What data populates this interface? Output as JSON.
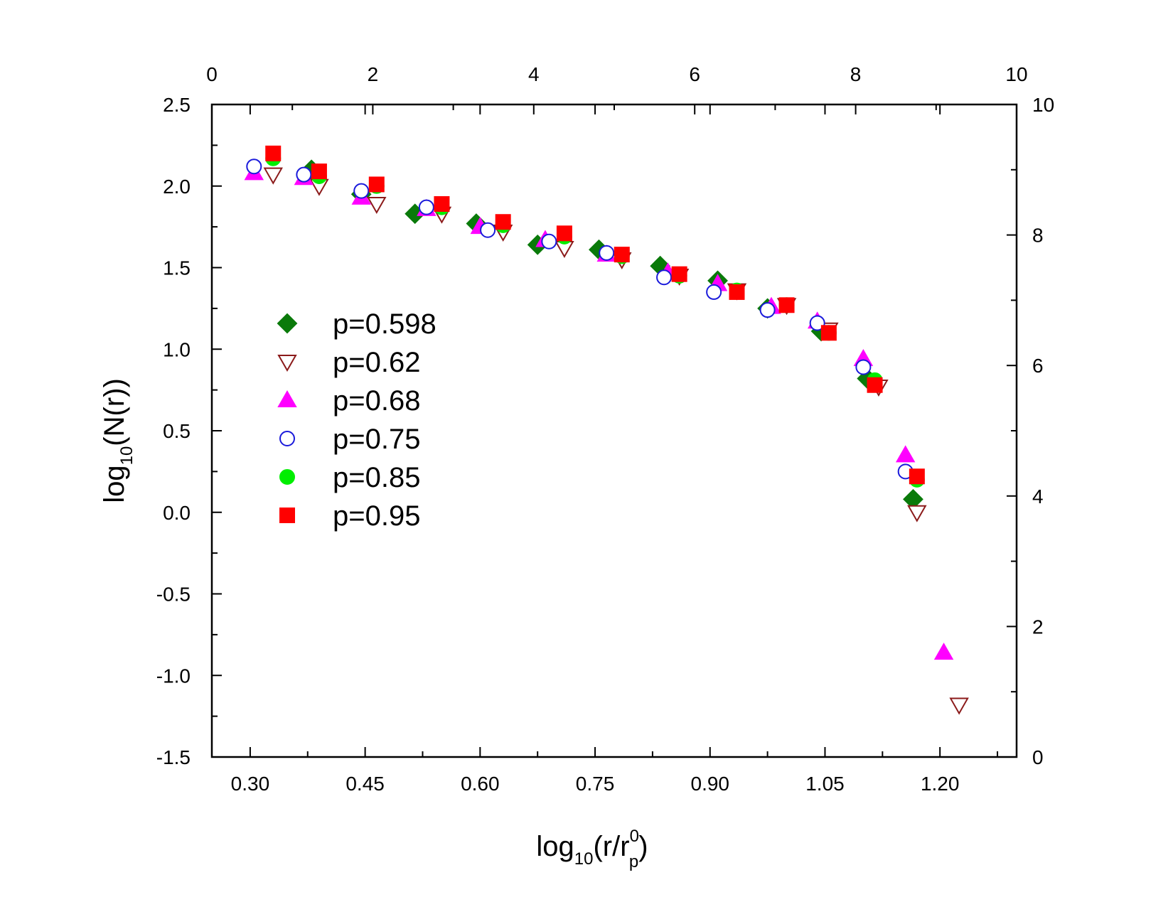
{
  "chart_data": {
    "type": "scatter",
    "title": "",
    "xlabel": {
      "base": "log",
      "sub": "10",
      "mid": "(r/r",
      "sup": "0",
      "sub2": "p",
      "end": ")"
    },
    "ylabel": {
      "base": "log",
      "sub": "10",
      "end": "(N(r))"
    },
    "xlim": [
      0.25,
      1.3
    ],
    "ylim": [
      -1.5,
      2.5
    ],
    "top_axis": {
      "lim": [
        0,
        10
      ],
      "ticks": [
        "0",
        "2",
        "4",
        "6",
        "8",
        "10"
      ]
    },
    "right_axis": {
      "lim": [
        0,
        10
      ],
      "ticks": [
        "0",
        "2",
        "4",
        "6",
        "8",
        "10"
      ]
    },
    "x_ticks": [
      "0.30",
      "0.45",
      "0.60",
      "0.75",
      "0.90",
      "1.05",
      "1.20"
    ],
    "y_ticks": [
      "2.5",
      "2.0",
      "1.5",
      "1.0",
      "0.5",
      "0.0",
      "-0.5",
      "-1.0",
      "-1.5"
    ],
    "grid": false,
    "legend_position": "left-middle",
    "series": [
      {
        "name": "p=0.598",
        "marker": "diamond",
        "color": "#0a7a0a",
        "filled": true,
        "x": [
          0.38,
          0.445,
          0.515,
          0.595,
          0.675,
          0.755,
          0.835,
          0.91,
          0.975,
          1.045,
          1.105,
          1.165
        ],
        "y": [
          2.1,
          1.95,
          1.83,
          1.77,
          1.64,
          1.61,
          1.51,
          1.42,
          1.25,
          1.11,
          0.82,
          0.08
        ]
      },
      {
        "name": "p=0.62",
        "marker": "triangle-down",
        "color": "#8b1a1a",
        "filled": false,
        "x": [
          0.33,
          0.39,
          0.465,
          0.55,
          0.63,
          0.71,
          0.785,
          0.86,
          0.935,
          1.0,
          1.055,
          1.12,
          1.17,
          1.225
        ],
        "y": [
          2.07,
          2.0,
          1.89,
          1.83,
          1.72,
          1.62,
          1.55,
          1.45,
          1.36,
          1.27,
          1.12,
          0.77,
          0.0,
          -1.18
        ]
      },
      {
        "name": "p=0.68",
        "marker": "triangle-up",
        "color": "#ff00ff",
        "filled": true,
        "x": [
          0.305,
          0.37,
          0.445,
          0.53,
          0.6,
          0.685,
          0.765,
          0.845,
          0.91,
          0.98,
          1.04,
          1.1,
          1.155,
          1.205
        ],
        "y": [
          2.08,
          2.05,
          1.93,
          1.86,
          1.75,
          1.67,
          1.58,
          1.47,
          1.4,
          1.26,
          1.17,
          0.94,
          0.35,
          -0.86
        ]
      },
      {
        "name": "p=0.75",
        "marker": "circle",
        "color": "#1a1adb",
        "filled": false,
        "x": [
          0.305,
          0.37,
          0.445,
          0.53,
          0.61,
          0.69,
          0.765,
          0.84,
          0.905,
          0.975,
          1.04,
          1.1,
          1.155
        ],
        "y": [
          2.12,
          2.07,
          1.97,
          1.87,
          1.73,
          1.66,
          1.59,
          1.44,
          1.35,
          1.24,
          1.16,
          0.89,
          0.25
        ]
      },
      {
        "name": "p=0.85",
        "marker": "circle",
        "color": "#00ee00",
        "filled": true,
        "x": [
          0.33,
          0.39,
          0.465,
          0.55,
          0.63,
          0.71,
          0.785,
          0.86,
          0.935,
          1.0,
          1.055,
          1.115,
          1.17
        ],
        "y": [
          2.17,
          2.06,
          2.0,
          1.87,
          1.76,
          1.69,
          1.57,
          1.45,
          1.36,
          1.27,
          1.1,
          0.81,
          0.2
        ]
      },
      {
        "name": "p=0.95",
        "marker": "square",
        "color": "#ff0000",
        "filled": true,
        "x": [
          0.33,
          0.39,
          0.465,
          0.55,
          0.63,
          0.71,
          0.785,
          0.86,
          0.935,
          1.0,
          1.055,
          1.115,
          1.17
        ],
        "y": [
          2.2,
          2.09,
          2.01,
          1.89,
          1.78,
          1.71,
          1.58,
          1.46,
          1.35,
          1.27,
          1.1,
          0.78,
          0.22
        ]
      }
    ]
  }
}
